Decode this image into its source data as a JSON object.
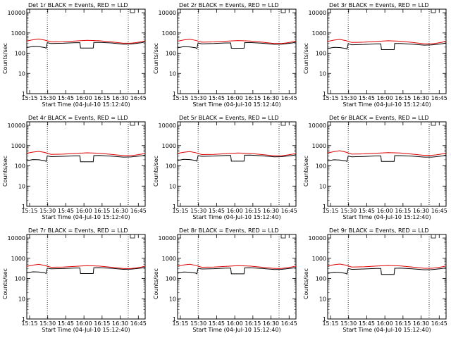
{
  "figure": {
    "xlabel": "Start Time (04-Jul-10 15:12:40)",
    "ylabel": "Counts/sec"
  },
  "chart_data": [
    {
      "type": "line",
      "title": "Det 1r BLACK = Events, RED = LLD",
      "x_ticks": [
        "15:15",
        "15:30",
        "15:45",
        "16:00",
        "16:15",
        "16:30",
        "16:45"
      ],
      "y_ticks": [
        "1",
        "10",
        "100",
        "1000",
        "10000"
      ],
      "y_scale": "log",
      "ylim": [
        1,
        15000
      ],
      "xlim_min": [
        0,
        98
      ],
      "vlines_min": [
        17,
        84
      ],
      "gap_min": [
        44,
        55
      ],
      "gap_value": 180,
      "colors": {
        "events": "#000000",
        "lld": "#e00000"
      },
      "series": [
        {
          "name": "BLACK = Events",
          "x": [
            0,
            5,
            10,
            15,
            16,
            17,
            20,
            30,
            40,
            44,
            44.5,
            55,
            55.5,
            60,
            70,
            80,
            86,
            90,
            95,
            98
          ],
          "y": [
            190,
            215,
            210,
            190,
            175,
            330,
            300,
            310,
            330,
            330,
            180,
            180,
            340,
            345,
            320,
            280,
            285,
            300,
            330,
            360
          ]
        },
        {
          "name": "RED = LLD",
          "x": [
            0,
            5,
            10,
            15,
            20,
            30,
            40,
            50,
            60,
            70,
            80,
            86,
            90,
            95,
            98
          ],
          "y": [
            400,
            460,
            500,
            440,
            360,
            370,
            400,
            430,
            410,
            360,
            310,
            310,
            330,
            370,
            410
          ]
        }
      ]
    },
    {
      "type": "line",
      "title": "Det 2r BLACK = Events, RED = LLD",
      "x_ticks": [
        "15:15",
        "15:30",
        "15:45",
        "16:00",
        "16:15",
        "16:30",
        "16:45"
      ],
      "y_ticks": [
        "1",
        "10",
        "100",
        "1000",
        "10000"
      ],
      "y_scale": "log",
      "ylim": [
        1,
        15000
      ],
      "xlim_min": [
        0,
        98
      ],
      "vlines_min": [
        17,
        84
      ],
      "gap_min": [
        44,
        55
      ],
      "gap_value": 180,
      "colors": {
        "events": "#000000",
        "lld": "#e00000"
      },
      "series": [
        {
          "name": "BLACK = Events",
          "x": [
            0,
            5,
            10,
            15,
            16,
            17,
            20,
            30,
            40,
            44,
            44.5,
            55,
            55.5,
            60,
            70,
            80,
            86,
            90,
            95,
            98
          ],
          "y": [
            185,
            210,
            205,
            185,
            170,
            320,
            290,
            300,
            320,
            320,
            175,
            175,
            330,
            335,
            310,
            275,
            280,
            295,
            320,
            350
          ]
        },
        {
          "name": "RED = LLD",
          "x": [
            0,
            5,
            10,
            15,
            20,
            30,
            40,
            50,
            60,
            70,
            80,
            86,
            90,
            95,
            98
          ],
          "y": [
            390,
            450,
            490,
            430,
            350,
            360,
            390,
            420,
            400,
            350,
            300,
            300,
            320,
            360,
            400
          ]
        }
      ]
    },
    {
      "type": "line",
      "title": "Det 3r BLACK = Events, RED = LLD",
      "x_ticks": [
        "15:15",
        "15:30",
        "15:45",
        "16:00",
        "16:15",
        "16:30",
        "16:45"
      ],
      "y_ticks": [
        "1",
        "10",
        "100",
        "1000",
        "10000"
      ],
      "y_scale": "log",
      "ylim": [
        1,
        15000
      ],
      "xlim_min": [
        0,
        98
      ],
      "vlines_min": [
        17,
        84
      ],
      "gap_min": [
        44,
        55
      ],
      "gap_value": 150,
      "colors": {
        "events": "#000000",
        "lld": "#e00000"
      },
      "series": [
        {
          "name": "BLACK = Events",
          "x": [
            0,
            5,
            10,
            15,
            16,
            17,
            20,
            30,
            40,
            44,
            44.5,
            55,
            55.5,
            60,
            70,
            80,
            86,
            90,
            95,
            98
          ],
          "y": [
            170,
            195,
            190,
            170,
            160,
            290,
            260,
            270,
            290,
            290,
            150,
            150,
            300,
            300,
            280,
            250,
            255,
            270,
            295,
            320
          ]
        },
        {
          "name": "RED = LLD",
          "x": [
            0,
            5,
            10,
            15,
            20,
            30,
            40,
            50,
            60,
            70,
            80,
            86,
            90,
            95,
            98
          ],
          "y": [
            380,
            440,
            480,
            420,
            340,
            350,
            380,
            410,
            390,
            340,
            290,
            290,
            310,
            350,
            390
          ]
        }
      ]
    },
    {
      "type": "line",
      "title": "Det 4r BLACK = Events, RED = LLD",
      "x_ticks": [
        "15:15",
        "15:30",
        "15:45",
        "16:00",
        "16:15",
        "16:30",
        "16:45"
      ],
      "y_ticks": [
        "1",
        "10",
        "100",
        "1000",
        "10000"
      ],
      "y_scale": "log",
      "ylim": [
        1,
        15000
      ],
      "xlim_min": [
        0,
        98
      ],
      "vlines_min": [
        17,
        84
      ],
      "gap_min": [
        44,
        55
      ],
      "gap_value": 160,
      "colors": {
        "events": "#000000",
        "lld": "#e00000"
      },
      "series": [
        {
          "name": "BLACK = Events",
          "x": [
            0,
            5,
            10,
            15,
            16,
            17,
            20,
            30,
            40,
            44,
            44.5,
            55,
            55.5,
            60,
            70,
            80,
            86,
            90,
            95,
            98
          ],
          "y": [
            180,
            205,
            200,
            180,
            165,
            310,
            285,
            295,
            315,
            315,
            160,
            160,
            320,
            325,
            300,
            270,
            275,
            290,
            315,
            340
          ]
        },
        {
          "name": "RED = LLD",
          "x": [
            0,
            5,
            10,
            15,
            20,
            30,
            40,
            50,
            60,
            70,
            80,
            86,
            90,
            95,
            98
          ],
          "y": [
            420,
            480,
            520,
            460,
            370,
            380,
            410,
            440,
            420,
            370,
            320,
            320,
            340,
            380,
            420
          ]
        }
      ]
    },
    {
      "type": "line",
      "title": "Det 5r BLACK = Events, RED = LLD",
      "x_ticks": [
        "15:15",
        "15:30",
        "15:45",
        "16:00",
        "16:15",
        "16:30",
        "16:45"
      ],
      "y_ticks": [
        "1",
        "10",
        "100",
        "1000",
        "10000"
      ],
      "y_scale": "log",
      "ylim": [
        1,
        15000
      ],
      "xlim_min": [
        0,
        98
      ],
      "vlines_min": [
        17,
        84
      ],
      "gap_min": [
        44,
        55
      ],
      "gap_value": 170,
      "colors": {
        "events": "#000000",
        "lld": "#e00000"
      },
      "series": [
        {
          "name": "BLACK = Events",
          "x": [
            0,
            5,
            10,
            15,
            16,
            17,
            20,
            30,
            40,
            44,
            44.5,
            55,
            55.5,
            60,
            70,
            80,
            86,
            90,
            95,
            98
          ],
          "y": [
            185,
            210,
            205,
            185,
            170,
            320,
            295,
            305,
            325,
            325,
            170,
            170,
            335,
            340,
            315,
            280,
            285,
            300,
            325,
            355
          ]
        },
        {
          "name": "RED = LLD",
          "x": [
            0,
            5,
            10,
            15,
            20,
            30,
            40,
            50,
            60,
            70,
            80,
            86,
            90,
            95,
            98
          ],
          "y": [
            410,
            470,
            510,
            450,
            360,
            370,
            400,
            430,
            410,
            360,
            315,
            315,
            335,
            375,
            415
          ]
        }
      ]
    },
    {
      "type": "line",
      "title": "Det 6r BLACK = Events, RED = LLD",
      "x_ticks": [
        "15:15",
        "15:30",
        "15:45",
        "16:00",
        "16:15",
        "16:30",
        "16:45"
      ],
      "y_ticks": [
        "1",
        "10",
        "100",
        "1000",
        "10000"
      ],
      "y_scale": "log",
      "ylim": [
        1,
        15000
      ],
      "xlim_min": [
        0,
        98
      ],
      "vlines_min": [
        17,
        84
      ],
      "gap_min": [
        44,
        55
      ],
      "gap_value": 165,
      "colors": {
        "events": "#000000",
        "lld": "#e00000"
      },
      "series": [
        {
          "name": "BLACK = Events",
          "x": [
            0,
            5,
            10,
            15,
            16,
            17,
            20,
            30,
            40,
            44,
            44.5,
            55,
            55.5,
            60,
            70,
            80,
            86,
            90,
            95,
            98
          ],
          "y": [
            175,
            200,
            195,
            175,
            165,
            305,
            280,
            290,
            310,
            310,
            165,
            165,
            320,
            320,
            300,
            270,
            270,
            285,
            310,
            340
          ]
        },
        {
          "name": "RED = LLD",
          "x": [
            0,
            5,
            10,
            15,
            20,
            30,
            40,
            50,
            60,
            70,
            80,
            86,
            90,
            95,
            98
          ],
          "y": [
            430,
            500,
            560,
            480,
            380,
            390,
            420,
            450,
            430,
            380,
            330,
            330,
            350,
            390,
            430
          ]
        }
      ]
    },
    {
      "type": "line",
      "title": "Det 7r BLACK = Events, RED = LLD",
      "x_ticks": [
        "15:15",
        "15:30",
        "15:45",
        "16:00",
        "16:15",
        "16:30",
        "16:45"
      ],
      "y_ticks": [
        "1",
        "10",
        "100",
        "1000",
        "10000"
      ],
      "y_scale": "log",
      "ylim": [
        1,
        15000
      ],
      "xlim_min": [
        0,
        98
      ],
      "vlines_min": [
        17,
        84
      ],
      "gap_min": [
        44,
        55
      ],
      "gap_value": 175,
      "colors": {
        "events": "#000000",
        "lld": "#e00000"
      },
      "series": [
        {
          "name": "BLACK = Events",
          "x": [
            0,
            5,
            10,
            15,
            16,
            17,
            20,
            30,
            40,
            44,
            44.5,
            55,
            55.5,
            60,
            70,
            80,
            86,
            90,
            95,
            98
          ],
          "y": [
            190,
            215,
            210,
            190,
            175,
            325,
            300,
            310,
            330,
            330,
            175,
            175,
            340,
            345,
            320,
            285,
            290,
            305,
            330,
            360
          ]
        },
        {
          "name": "RED = LLD",
          "x": [
            0,
            5,
            10,
            15,
            20,
            30,
            40,
            50,
            60,
            70,
            80,
            86,
            90,
            95,
            98
          ],
          "y": [
            400,
            460,
            500,
            440,
            360,
            370,
            400,
            430,
            410,
            360,
            310,
            310,
            330,
            370,
            410
          ]
        }
      ]
    },
    {
      "type": "line",
      "title": "Det 8r BLACK = Events, RED = LLD",
      "x_ticks": [
        "15:15",
        "15:30",
        "15:45",
        "16:00",
        "16:15",
        "16:30",
        "16:45"
      ],
      "y_ticks": [
        "1",
        "10",
        "100",
        "1000",
        "10000"
      ],
      "y_scale": "log",
      "ylim": [
        1,
        15000
      ],
      "xlim_min": [
        0,
        98
      ],
      "vlines_min": [
        17,
        84
      ],
      "gap_min": [
        44,
        55
      ],
      "gap_value": 170,
      "colors": {
        "events": "#000000",
        "lld": "#e00000"
      },
      "series": [
        {
          "name": "BLACK = Events",
          "x": [
            0,
            5,
            10,
            15,
            16,
            17,
            20,
            30,
            40,
            44,
            44.5,
            55,
            55.5,
            60,
            70,
            80,
            86,
            90,
            95,
            98
          ],
          "y": [
            185,
            210,
            205,
            185,
            170,
            320,
            295,
            305,
            325,
            325,
            170,
            170,
            335,
            340,
            315,
            280,
            285,
            300,
            325,
            355
          ]
        },
        {
          "name": "RED = LLD",
          "x": [
            0,
            5,
            10,
            15,
            20,
            30,
            40,
            50,
            60,
            70,
            80,
            86,
            90,
            95,
            98
          ],
          "y": [
            410,
            470,
            510,
            450,
            360,
            370,
            400,
            430,
            410,
            360,
            315,
            315,
            335,
            375,
            415
          ]
        }
      ]
    },
    {
      "type": "line",
      "title": "Det 9r BLACK = Events, RED = LLD",
      "x_ticks": [
        "15:15",
        "15:30",
        "15:45",
        "16:00",
        "16:15",
        "16:30",
        "16:45"
      ],
      "y_ticks": [
        "1",
        "10",
        "100",
        "1000",
        "10000"
      ],
      "y_scale": "log",
      "ylim": [
        1,
        15000
      ],
      "xlim_min": [
        0,
        98
      ],
      "vlines_min": [
        17,
        84
      ],
      "gap_min": [
        44,
        55
      ],
      "gap_value": 160,
      "colors": {
        "events": "#000000",
        "lld": "#e00000"
      },
      "series": [
        {
          "name": "BLACK = Events",
          "x": [
            0,
            5,
            10,
            15,
            16,
            17,
            20,
            30,
            40,
            44,
            44.5,
            55,
            55.5,
            60,
            70,
            80,
            86,
            90,
            95,
            98
          ],
          "y": [
            180,
            205,
            200,
            180,
            165,
            310,
            285,
            295,
            315,
            315,
            160,
            160,
            320,
            325,
            300,
            270,
            275,
            290,
            315,
            340
          ]
        },
        {
          "name": "RED = LLD",
          "x": [
            0,
            5,
            10,
            15,
            20,
            30,
            40,
            50,
            60,
            70,
            80,
            86,
            90,
            95,
            98
          ],
          "y": [
            420,
            480,
            520,
            460,
            370,
            380,
            410,
            440,
            420,
            370,
            320,
            320,
            340,
            380,
            420
          ]
        }
      ]
    }
  ]
}
